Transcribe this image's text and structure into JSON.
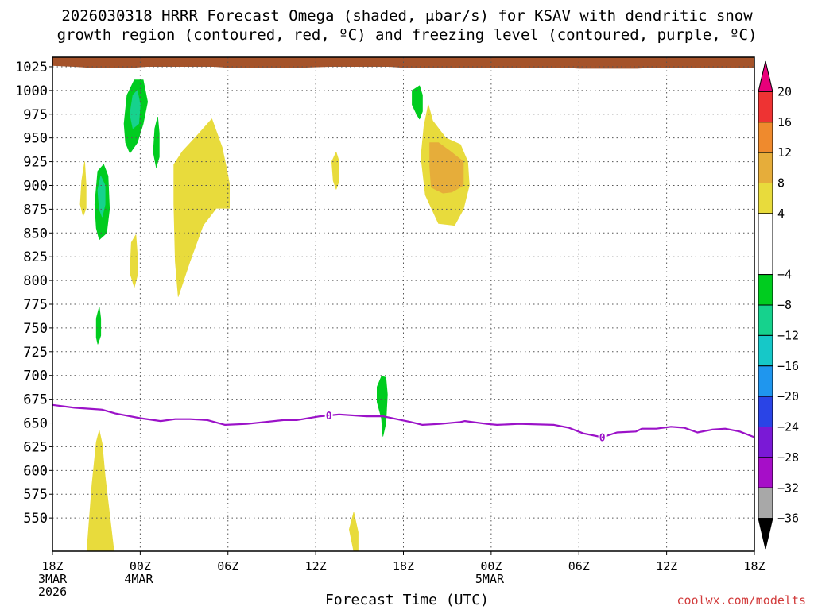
{
  "title_line1": "2026030318 HRRR Forecast Omega (shaded, μbar/s) for KSAV with dendritic snow",
  "title_line2": "growth region (contoured, red, ºC) and freezing level (contoured, purple, ºC)",
  "xlabel": "Forecast Time (UTC)",
  "credit": "coolwx.com/modelts",
  "chart_data": {
    "type": "contour",
    "y_unit": "hPa",
    "ylim": [
      1035,
      515
    ],
    "y_ticks": [
      550,
      575,
      600,
      625,
      650,
      675,
      700,
      725,
      750,
      775,
      800,
      825,
      850,
      875,
      900,
      925,
      950,
      975,
      1000,
      1025
    ],
    "xlim_hours": [
      0,
      48
    ],
    "x_ticks": [
      {
        "hour": 0,
        "label": [
          "18Z",
          "3MAR",
          "2026"
        ]
      },
      {
        "hour": 6,
        "label": [
          "00Z",
          "4MAR"
        ]
      },
      {
        "hour": 12,
        "label": [
          "06Z"
        ]
      },
      {
        "hour": 18,
        "label": [
          "12Z"
        ]
      },
      {
        "hour": 24,
        "label": [
          "18Z"
        ]
      },
      {
        "hour": 30,
        "label": [
          "00Z",
          "5MAR"
        ]
      },
      {
        "hour": 36,
        "label": [
          "06Z"
        ]
      },
      {
        "hour": 42,
        "label": [
          "12Z"
        ]
      },
      {
        "hour": 48,
        "label": [
          "18Z"
        ]
      }
    ],
    "grid": true,
    "colorbar": {
      "ticks": [
        20,
        16,
        12,
        8,
        4,
        -4,
        -8,
        -12,
        -16,
        -20,
        -24,
        -28,
        -32,
        -36
      ],
      "bands": [
        {
          "from": 20,
          "to": 24,
          "color": "#e8007a",
          "arrow": "up"
        },
        {
          "from": 16,
          "to": 20,
          "color": "#ee3333"
        },
        {
          "from": 12,
          "to": 16,
          "color": "#ef8a2d"
        },
        {
          "from": 8,
          "to": 12,
          "color": "#e6ad3a"
        },
        {
          "from": 4,
          "to": 8,
          "color": "#e8db3c"
        },
        {
          "from": -4,
          "to": 4,
          "color": "#ffffff"
        },
        {
          "from": -8,
          "to": -4,
          "color": "#00cc1f"
        },
        {
          "from": -12,
          "to": -8,
          "color": "#16d28d"
        },
        {
          "from": -16,
          "to": -12,
          "color": "#16c8c8"
        },
        {
          "from": -20,
          "to": -16,
          "color": "#1f96ee"
        },
        {
          "from": -24,
          "to": -20,
          "color": "#2a44e6"
        },
        {
          "from": -28,
          "to": -24,
          "color": "#7a19d6"
        },
        {
          "from": -32,
          "to": -28,
          "color": "#a60ec8"
        },
        {
          "from": -36,
          "to": -32,
          "color": "#a8a8a8"
        },
        {
          "from": -40,
          "to": -36,
          "color": "#000000",
          "arrow": "down"
        }
      ]
    },
    "freezing_level": {
      "color": "#9b12c8",
      "label": "0",
      "label_points": [
        [
          18.9,
          658
        ],
        [
          37.6,
          635
        ]
      ],
      "points": [
        [
          0,
          669
        ],
        [
          1.5,
          666
        ],
        [
          3.4,
          664
        ],
        [
          4.3,
          660
        ],
        [
          6.0,
          655
        ],
        [
          7.4,
          652
        ],
        [
          8.4,
          654
        ],
        [
          9.4,
          654
        ],
        [
          10.6,
          653
        ],
        [
          11.8,
          648
        ],
        [
          13.3,
          649
        ],
        [
          15.8,
          653
        ],
        [
          16.7,
          653
        ],
        [
          18.3,
          657
        ],
        [
          19.6,
          659
        ],
        [
          21.5,
          657
        ],
        [
          22.6,
          657
        ],
        [
          24.5,
          651
        ],
        [
          25.3,
          648
        ],
        [
          26.5,
          649
        ],
        [
          27.9,
          651
        ],
        [
          28.2,
          652
        ],
        [
          29.7,
          649
        ],
        [
          30.4,
          648
        ],
        [
          31.9,
          649
        ],
        [
          34.3,
          648
        ],
        [
          35.3,
          645
        ],
        [
          36.3,
          639
        ],
        [
          37.6,
          635
        ],
        [
          38.6,
          640
        ],
        [
          39.9,
          641
        ],
        [
          40.3,
          644
        ],
        [
          41.3,
          644
        ],
        [
          42.3,
          646
        ],
        [
          43.2,
          645
        ],
        [
          44.1,
          640
        ],
        [
          45.1,
          643
        ],
        [
          46.0,
          644
        ],
        [
          47.0,
          641
        ],
        [
          48,
          635
        ]
      ]
    },
    "shaded_regions": [
      {
        "value_band": "4 to 8",
        "color": "#e8db3c",
        "points": [
          [
            2.4,
            515
          ],
          [
            4.2,
            515
          ],
          [
            3.6,
            594
          ],
          [
            3.4,
            628
          ],
          [
            3.2,
            642
          ],
          [
            3.0,
            630
          ],
          [
            2.7,
            585
          ],
          [
            2.4,
            525
          ]
        ]
      },
      {
        "value_band": "4 to 8",
        "color": "#e8db3c",
        "points": [
          [
            20.6,
            515
          ],
          [
            20.9,
            515
          ],
          [
            20.9,
            535
          ],
          [
            20.6,
            556
          ],
          [
            20.3,
            538
          ]
        ]
      },
      {
        "value_band": "4 to 8",
        "color": "#e8db3c",
        "points": [
          [
            5.6,
            793
          ],
          [
            5.8,
            805
          ],
          [
            5.8,
            828
          ],
          [
            5.7,
            848
          ],
          [
            5.4,
            840
          ],
          [
            5.3,
            808
          ]
        ]
      },
      {
        "value_band": "4 to 8",
        "color": "#e8db3c",
        "points": [
          [
            2.1,
            868
          ],
          [
            2.3,
            876
          ],
          [
            2.3,
            900
          ],
          [
            2.2,
            925
          ],
          [
            2.0,
            905
          ],
          [
            1.9,
            880
          ]
        ]
      },
      {
        "value_band": "4 to 8",
        "color": "#e8db3c",
        "points": [
          [
            8.6,
            783
          ],
          [
            9.4,
            820
          ],
          [
            10.3,
            858
          ],
          [
            11.2,
            876
          ],
          [
            12.1,
            876
          ],
          [
            12.1,
            902
          ],
          [
            11.9,
            918
          ],
          [
            11.6,
            940
          ],
          [
            10.9,
            970
          ],
          [
            9.8,
            951
          ],
          [
            8.9,
            936
          ],
          [
            8.3,
            922
          ],
          [
            8.3,
            880
          ],
          [
            8.4,
            820
          ]
        ]
      },
      {
        "value_band": "4 to 8",
        "color": "#e8db3c",
        "points": [
          [
            19.4,
            896
          ],
          [
            19.6,
            905
          ],
          [
            19.6,
            925
          ],
          [
            19.4,
            935
          ],
          [
            19.1,
            925
          ],
          [
            19.2,
            905
          ]
        ]
      },
      {
        "value_band": "4 to 8",
        "color": "#e8db3c",
        "points": [
          [
            26.4,
            860
          ],
          [
            27.5,
            858
          ],
          [
            28.1,
            875
          ],
          [
            28.5,
            900
          ],
          [
            28.4,
            925
          ],
          [
            27.9,
            943
          ],
          [
            26.9,
            950
          ],
          [
            26.0,
            968
          ],
          [
            25.7,
            985
          ],
          [
            25.4,
            962
          ],
          [
            25.2,
            930
          ],
          [
            25.5,
            890
          ]
        ]
      },
      {
        "value_band": "8 to 12",
        "color": "#e6ad3a",
        "points": [
          [
            26.7,
            892
          ],
          [
            27.3,
            893
          ],
          [
            28.1,
            900
          ],
          [
            28.1,
            925
          ],
          [
            27.2,
            936
          ],
          [
            26.4,
            945
          ],
          [
            25.8,
            945
          ],
          [
            25.8,
            920
          ],
          [
            25.9,
            898
          ]
        ]
      },
      {
        "value_band": "-8 to -4",
        "color": "#00cc1f",
        "points": [
          [
            3.1,
            733
          ],
          [
            3.3,
            742
          ],
          [
            3.3,
            760
          ],
          [
            3.2,
            772
          ],
          [
            3.0,
            760
          ],
          [
            3.0,
            740
          ]
        ]
      },
      {
        "value_band": "-8 to -4",
        "color": "#00cc1f",
        "points": [
          [
            22.6,
            636
          ],
          [
            22.8,
            650
          ],
          [
            22.9,
            680
          ],
          [
            22.8,
            698
          ],
          [
            22.5,
            699
          ],
          [
            22.2,
            688
          ],
          [
            22.2,
            672
          ],
          [
            22.5,
            655
          ]
        ]
      },
      {
        "value_band": "-8 to -4",
        "color": "#00cc1f",
        "points": [
          [
            3.2,
            843
          ],
          [
            3.7,
            850
          ],
          [
            3.9,
            875
          ],
          [
            3.8,
            910
          ],
          [
            3.5,
            922
          ],
          [
            3.1,
            915
          ],
          [
            2.9,
            880
          ],
          [
            3.0,
            855
          ]
        ]
      },
      {
        "value_band": "-8 to -4",
        "color": "#00cc1f",
        "points": [
          [
            5.3,
            934
          ],
          [
            5.8,
            945
          ],
          [
            6.2,
            965
          ],
          [
            6.5,
            988
          ],
          [
            6.2,
            1011
          ],
          [
            5.6,
            1011
          ],
          [
            5.1,
            995
          ],
          [
            4.9,
            965
          ],
          [
            5.0,
            945
          ]
        ]
      },
      {
        "value_band": "-8 to -4",
        "color": "#00cc1f",
        "points": [
          [
            7.1,
            919
          ],
          [
            7.3,
            930
          ],
          [
            7.3,
            955
          ],
          [
            7.2,
            972
          ],
          [
            7.0,
            960
          ],
          [
            6.9,
            935
          ]
        ]
      },
      {
        "value_band": "-8 to -4",
        "color": "#00cc1f",
        "points": [
          [
            25.1,
            970
          ],
          [
            25.3,
            978
          ],
          [
            25.3,
            995
          ],
          [
            25.1,
            1005
          ],
          [
            24.6,
            1000
          ],
          [
            24.6,
            985
          ],
          [
            24.9,
            975
          ]
        ]
      },
      {
        "value_band": "-12 to -8",
        "color": "#16d28d",
        "points": [
          [
            3.4,
            867
          ],
          [
            3.6,
            880
          ],
          [
            3.6,
            900
          ],
          [
            3.3,
            910
          ],
          [
            3.1,
            895
          ],
          [
            3.2,
            875
          ]
        ]
      },
      {
        "value_band": "-12 to -8",
        "color": "#16d28d",
        "points": [
          [
            5.5,
            960
          ],
          [
            5.9,
            965
          ],
          [
            6.0,
            985
          ],
          [
            5.8,
            1000
          ],
          [
            5.5,
            995
          ],
          [
            5.3,
            975
          ]
        ]
      }
    ],
    "surface": {
      "color": "#a5532a",
      "points": [
        [
          0,
          1026
        ],
        [
          1.5,
          1025
        ],
        [
          2.5,
          1024
        ],
        [
          5.5,
          1024
        ],
        [
          6.5,
          1025
        ],
        [
          11,
          1025
        ],
        [
          12,
          1024
        ],
        [
          17,
          1024
        ],
        [
          19,
          1025
        ],
        [
          23,
          1025
        ],
        [
          24,
          1024
        ],
        [
          35,
          1024
        ],
        [
          36,
          1023
        ],
        [
          40,
          1023
        ],
        [
          41,
          1024
        ],
        [
          48,
          1024
        ]
      ]
    }
  }
}
